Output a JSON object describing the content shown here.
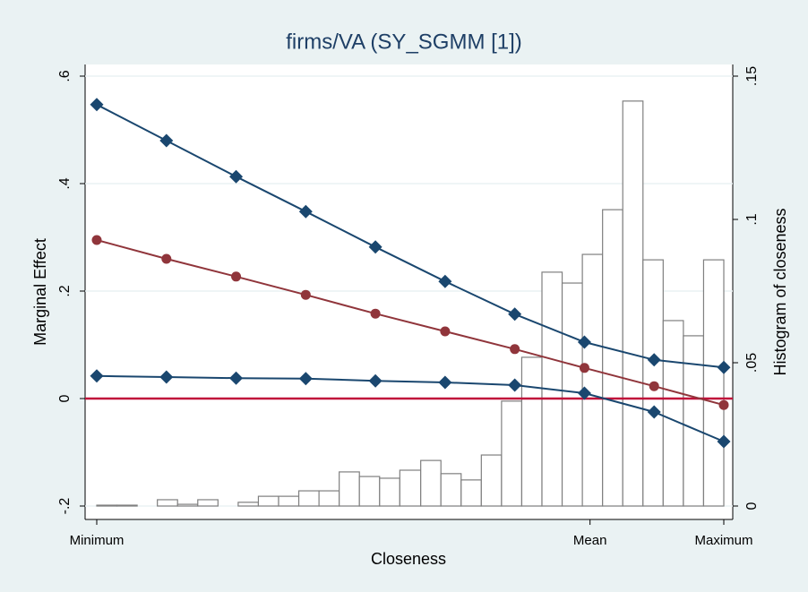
{
  "chart_data": {
    "type": "combo",
    "title": "firms/VA (SY_SGMM [1])",
    "x_label": "Closeness",
    "y_label": "Marginal Effect",
    "y2_label": "Histogram of closeness",
    "x": [
      1,
      2,
      3,
      4,
      5,
      6,
      7,
      8,
      9,
      10
    ],
    "xlim": [
      1,
      10
    ],
    "xticks": [
      {
        "value": 1,
        "label": "Minimum"
      },
      {
        "value": 8.08,
        "label": "Mean"
      },
      {
        "value": 10,
        "label": "Maximum"
      }
    ],
    "ylim": [
      -0.2,
      0.6
    ],
    "yticks": [
      {
        "value": -0.2,
        "label": "-.2"
      },
      0,
      {
        "value": 0.2,
        "label": ".2"
      },
      {
        "value": 0.4,
        "label": ".4"
      },
      {
        "value": 0.6,
        "label": ".6"
      }
    ],
    "y2lim": [
      0,
      0.15
    ],
    "y2ticks": [
      0,
      {
        "value": 0.05,
        "label": ".05"
      },
      {
        "value": 0.1,
        "label": ".1"
      },
      {
        "value": 0.15,
        "label": ".15"
      }
    ],
    "grid": true,
    "reference_line": {
      "value": 0,
      "color": "#c0103a"
    },
    "series": [
      {
        "color": "#1a476f",
        "marker": "diamond",
        "values": [
          0.547,
          0.48,
          0.413,
          0.348,
          0.282,
          0.218,
          0.157,
          0.105,
          0.072,
          0.058
        ]
      },
      {
        "color": "#90353b",
        "marker": "circle",
        "values": [
          0.295,
          0.26,
          0.227,
          0.193,
          0.158,
          0.125,
          0.092,
          0.057,
          0.023,
          -0.012
        ]
      },
      {
        "color": "#1a476f",
        "marker": "diamond",
        "values": [
          0.042,
          0.04,
          0.038,
          0.037,
          0.033,
          0.03,
          0.025,
          0.01,
          -0.025,
          -0.08
        ]
      }
    ],
    "histogram": {
      "axis": "y2",
      "color": "#7f7f7f",
      "bins": [
        1,
        1.29,
        1.58,
        1.87,
        2.16,
        2.45,
        2.74,
        3.03,
        3.32,
        3.61,
        3.9,
        4.19,
        4.48,
        4.77,
        5.06,
        5.35,
        5.65,
        5.94,
        6.23,
        6.52,
        6.81,
        7.1,
        7.39,
        7.68,
        7.97,
        8.26,
        8.55,
        8.84,
        9.13,
        9.42,
        9.71,
        10
      ],
      "values": [
        0.0003,
        0.0003,
        0,
        0.0022,
        0.0006,
        0.0022,
        0,
        0.0013,
        0.0034,
        0.0034,
        0.0053,
        0.0053,
        0.0119,
        0.0103,
        0.0097,
        0.0125,
        0.0159,
        0.0113,
        0.0091,
        0.0178,
        0.0366,
        0.0519,
        0.0816,
        0.0778,
        0.0878,
        0.1034,
        0.1413,
        0.0859,
        0.0647,
        0.0594,
        0.0859
      ]
    }
  }
}
